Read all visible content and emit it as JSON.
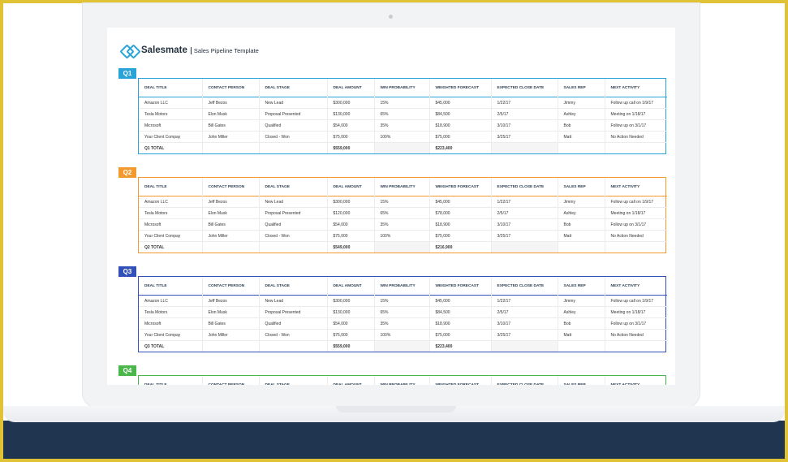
{
  "brand": {
    "name": "Salesmate",
    "subtitle": "Sales Pipeline Template"
  },
  "colors": {
    "q1": "#2aa3d9",
    "q2": "#f29a2e",
    "q3": "#3350b8",
    "q4": "#4bb74a"
  },
  "columns": [
    "DEAL TITLE",
    "CONTACT PERSON",
    "DEAL STAGE",
    "DEAL AMOUNT",
    "WIN PROBABILITY",
    "WEIGHTED FORECAST",
    "EXPECTED CLOSE DATE",
    "SALES REP",
    "NEXT ACTIVITY"
  ],
  "quarters": [
    {
      "label": "Q1",
      "color": "#2aa3d9",
      "rows": [
        [
          "Amazon LLC",
          "Jeff Bezos",
          "New Lead",
          "$300,000",
          "15%",
          "$45,000",
          "1/22/17",
          "Jimmy",
          "Follow up call on 1/9/17"
        ],
        [
          "Tesla Motors",
          "Elon Musk",
          "Proposal Presented",
          "$130,000",
          "65%",
          "$84,500",
          "2/5/17",
          "Ashley",
          "Meeting on 1/18/17"
        ],
        [
          "Microsoft",
          "Bill Gates",
          "Qualified",
          "$54,000",
          "35%",
          "$18,900",
          "3/10/17",
          "Bob",
          "Follow up on 3/1/17"
        ],
        [
          "Your Client Compay",
          "John Miller",
          "Closed - Won",
          "$75,000",
          "100%",
          "$75,000",
          "3/25/17",
          "Matt",
          "No Action Needed"
        ]
      ],
      "total": {
        "label": "Q1 TOTAL",
        "amount": "$559,000",
        "forecast": "$223,400"
      }
    },
    {
      "label": "Q2",
      "color": "#f29a2e",
      "rows": [
        [
          "Amazon LLC",
          "Jeff Bezos",
          "New Lead",
          "$300,000",
          "15%",
          "$45,000",
          "1/22/17",
          "Jimmy",
          "Follow up call on 1/9/17"
        ],
        [
          "Tesla Motors",
          "Elon Musk",
          "Proposal Presented",
          "$120,000",
          "65%",
          "$78,000",
          "2/5/17",
          "Ashley",
          "Meeting on 1/18/17"
        ],
        [
          "Microsoft",
          "Bill Gates",
          "Qualified",
          "$54,000",
          "35%",
          "$18,900",
          "3/10/17",
          "Bob",
          "Follow up on 3/1/17"
        ],
        [
          "Your Client Compay",
          "John Miller",
          "Closed - Won",
          "$75,000",
          "100%",
          "$75,000",
          "3/25/17",
          "Matt",
          "No Action Needed"
        ]
      ],
      "total": {
        "label": "Q2 TOTAL",
        "amount": "$549,000",
        "forecast": "$216,900"
      }
    },
    {
      "label": "Q3",
      "color": "#3350b8",
      "rows": [
        [
          "Amazon LLC",
          "Jeff Bezos",
          "New Lead",
          "$300,000",
          "15%",
          "$45,000",
          "1/22/17",
          "Jimmy",
          "Follow up call on 1/9/17"
        ],
        [
          "Tesla Motors",
          "Elon Musk",
          "Proposal Presented",
          "$130,000",
          "65%",
          "$84,500",
          "2/5/17",
          "Ashley",
          "Meeting on 1/18/17"
        ],
        [
          "Microsoft",
          "Bill Gates",
          "Qualified",
          "$54,000",
          "35%",
          "$18,900",
          "3/10/17",
          "Bob",
          "Follow up on 3/1/17"
        ],
        [
          "Your Client Compay",
          "John Miller",
          "Closed - Won",
          "$75,000",
          "100%",
          "$75,000",
          "3/25/17",
          "Matt",
          "No Action Needed"
        ]
      ],
      "total": {
        "label": "Q3 TOTAL",
        "amount": "$559,000",
        "forecast": "$223,400"
      }
    },
    {
      "label": "Q4",
      "color": "#4bb74a",
      "rows": [],
      "total": null
    }
  ]
}
